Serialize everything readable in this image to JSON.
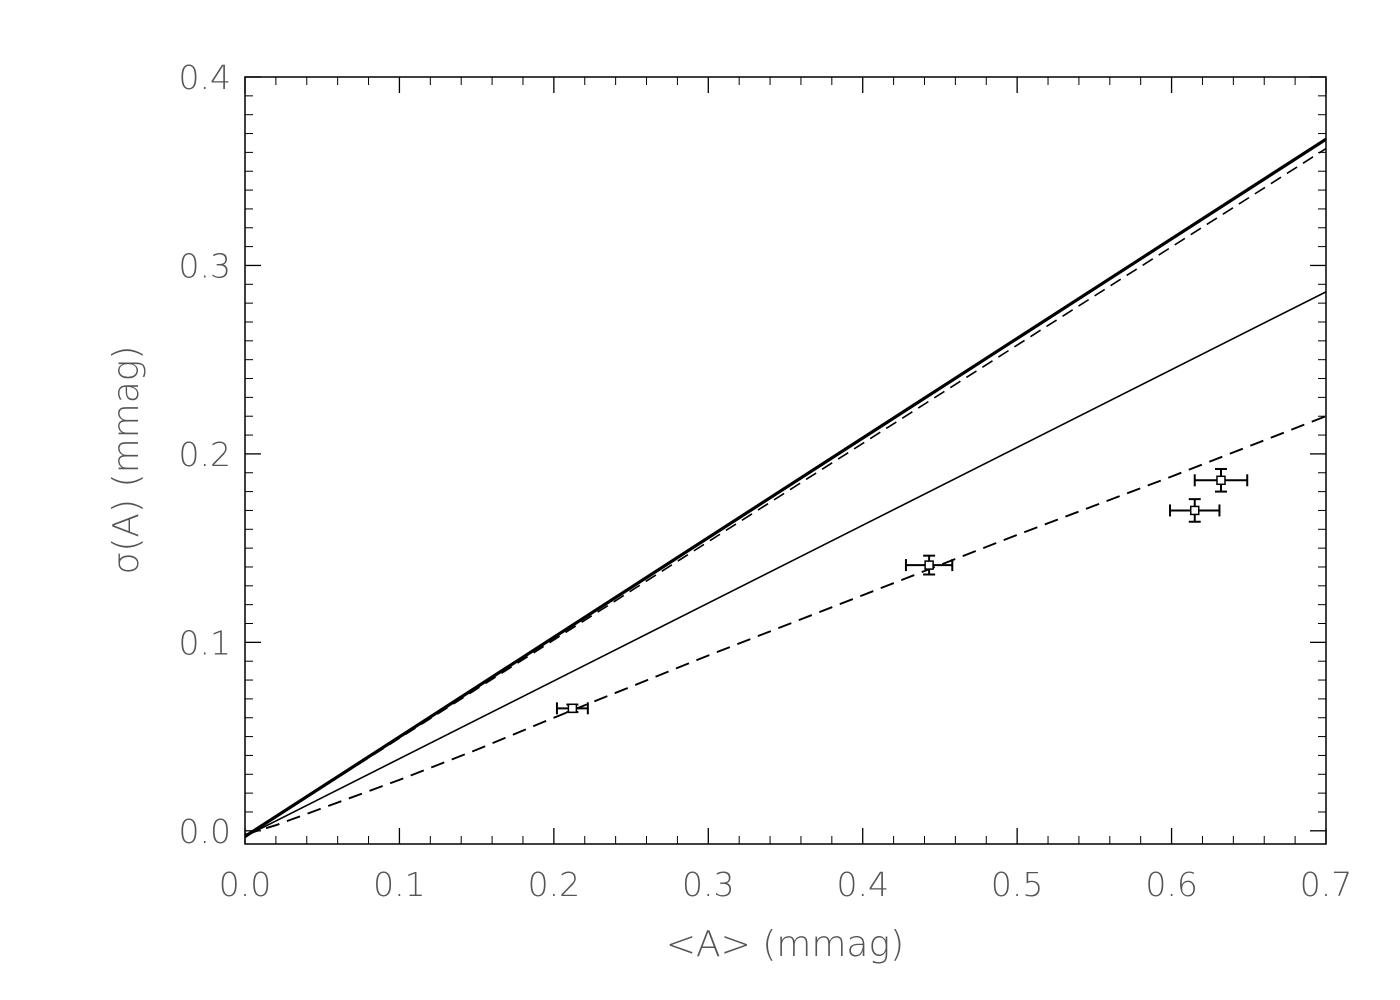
{
  "chart_data": {
    "type": "line",
    "title": "",
    "xlabel": "<A> (mmag)",
    "ylabel": "σ(A) (mmag)",
    "xlim": [
      0.0,
      0.7
    ],
    "ylim": [
      -0.007,
      0.4
    ],
    "xticks": [
      "0.0",
      "0.1",
      "0.2",
      "0.3",
      "0.4",
      "0.5",
      "0.6",
      "0.7"
    ],
    "yticks": [
      "0.0",
      "0.1",
      "0.2",
      "0.3",
      "0.4"
    ],
    "grid": false,
    "legend": "none",
    "series": [
      {
        "style": "thick-solid",
        "x": [
          0.0,
          0.7
        ],
        "y": [
          -0.003,
          0.367
        ]
      },
      {
        "style": "dashed",
        "x": [
          0.0,
          0.7
        ],
        "y": [
          -0.003,
          0.362
        ]
      },
      {
        "style": "thin-solid",
        "x": [
          0.0,
          0.7
        ],
        "y": [
          -0.003,
          0.286
        ]
      },
      {
        "style": "dashed-curve",
        "x": [
          0.0,
          0.02,
          0.05,
          0.1,
          0.15,
          0.2,
          0.3,
          0.4,
          0.5,
          0.6,
          0.7
        ],
        "y": [
          -0.002,
          0.003,
          0.012,
          0.027,
          0.043,
          0.06,
          0.093,
          0.125,
          0.157,
          0.188,
          0.22
        ]
      }
    ],
    "points": [
      {
        "x": 0.212,
        "y": 0.065,
        "xerr": 0.01,
        "yerr": 0.002
      },
      {
        "x": 0.443,
        "y": 0.141,
        "xerr": 0.015,
        "yerr": 0.005
      },
      {
        "x": 0.615,
        "y": 0.17,
        "xerr": 0.016,
        "yerr": 0.006
      },
      {
        "x": 0.632,
        "y": 0.186,
        "xerr": 0.017,
        "yerr": 0.006
      }
    ]
  }
}
